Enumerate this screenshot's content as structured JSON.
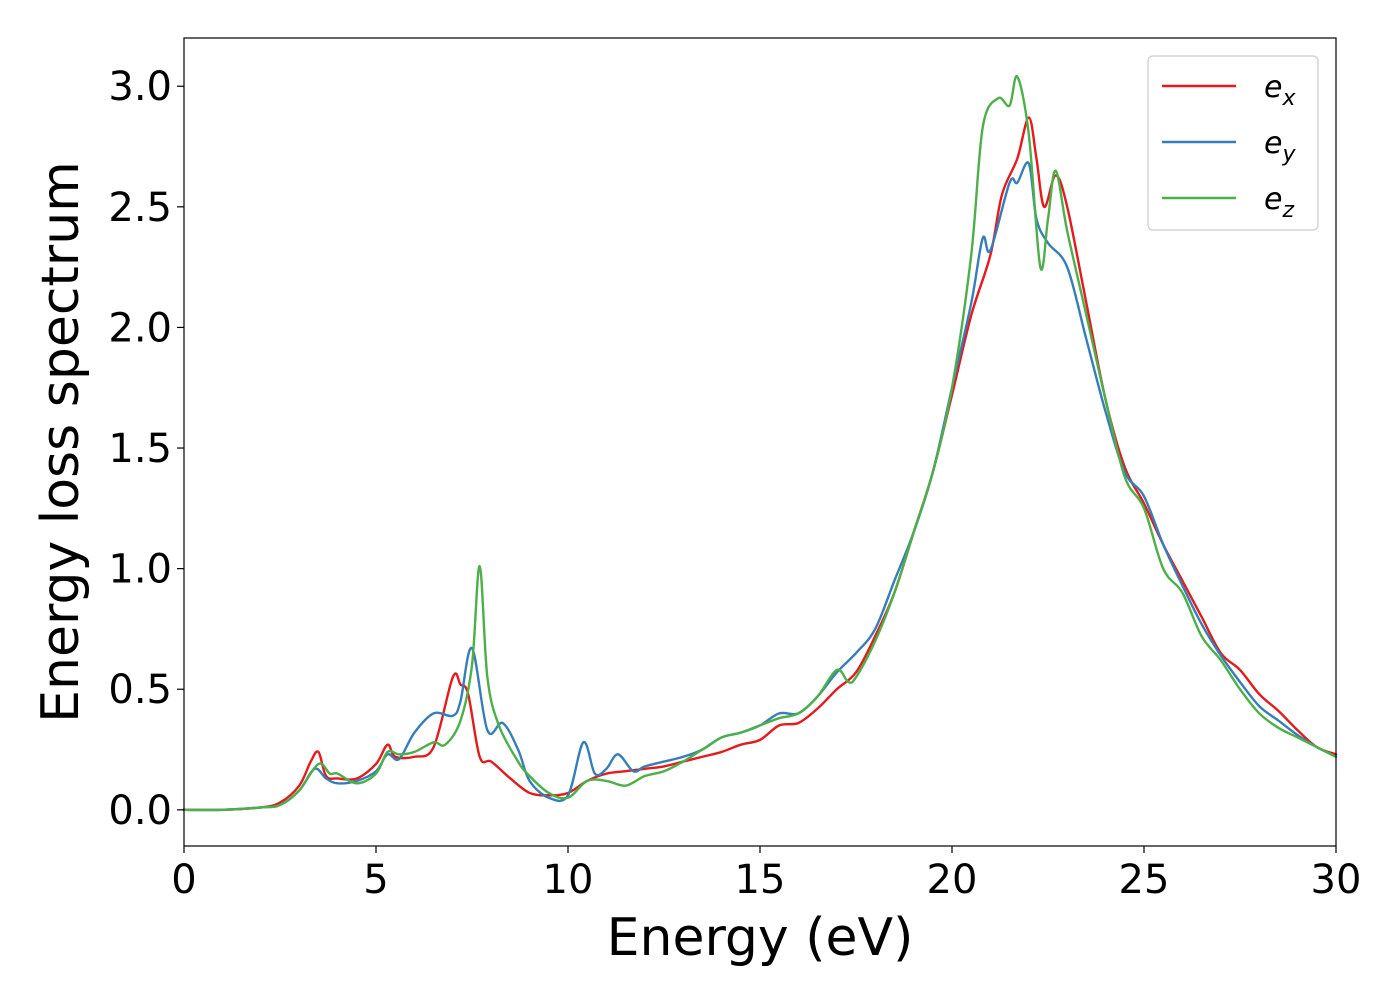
{
  "chart_data": {
    "type": "line",
    "title": "",
    "xlabel": "Energy (eV)",
    "ylabel": "Energy loss spectrum",
    "xlim": [
      0,
      30
    ],
    "ylim": [
      -0.15,
      3.2
    ],
    "xticks": [
      0,
      5,
      10,
      15,
      20,
      25,
      30
    ],
    "xtick_labels": [
      "0",
      "5",
      "10",
      "15",
      "20",
      "25",
      "30"
    ],
    "yticks": [
      0.0,
      0.5,
      1.0,
      1.5,
      2.0,
      2.5,
      3.0
    ],
    "ytick_labels": [
      "0.0",
      "0.5",
      "1.0",
      "1.5",
      "2.0",
      "2.5",
      "3.0"
    ],
    "grid": false,
    "legend_position": "upper-right",
    "series": [
      {
        "name": "e_x",
        "legend_base": "e",
        "legend_sub": "x",
        "color": "#e41a1c",
        "points": [
          [
            0,
            0
          ],
          [
            1,
            0
          ],
          [
            2,
            0.01
          ],
          [
            2.5,
            0.03
          ],
          [
            3,
            0.1
          ],
          [
            3.3,
            0.2
          ],
          [
            3.5,
            0.24
          ],
          [
            3.7,
            0.14
          ],
          [
            4,
            0.13
          ],
          [
            4.5,
            0.13
          ],
          [
            5,
            0.19
          ],
          [
            5.3,
            0.27
          ],
          [
            5.5,
            0.22
          ],
          [
            6,
            0.22
          ],
          [
            6.5,
            0.26
          ],
          [
            7,
            0.55
          ],
          [
            7.2,
            0.52
          ],
          [
            7.4,
            0.48
          ],
          [
            7.7,
            0.22
          ],
          [
            8,
            0.2
          ],
          [
            8.5,
            0.13
          ],
          [
            9,
            0.07
          ],
          [
            9.5,
            0.06
          ],
          [
            10,
            0.07
          ],
          [
            10.5,
            0.12
          ],
          [
            11,
            0.15
          ],
          [
            11.5,
            0.16
          ],
          [
            12,
            0.17
          ],
          [
            12.5,
            0.18
          ],
          [
            13,
            0.2
          ],
          [
            13.5,
            0.22
          ],
          [
            14,
            0.24
          ],
          [
            14.5,
            0.27
          ],
          [
            15,
            0.29
          ],
          [
            15.5,
            0.35
          ],
          [
            16,
            0.36
          ],
          [
            16.5,
            0.42
          ],
          [
            17,
            0.5
          ],
          [
            17.5,
            0.57
          ],
          [
            18,
            0.72
          ],
          [
            18.5,
            0.9
          ],
          [
            19,
            1.15
          ],
          [
            19.5,
            1.4
          ],
          [
            20,
            1.72
          ],
          [
            20.5,
            2.05
          ],
          [
            21,
            2.3
          ],
          [
            21.3,
            2.55
          ],
          [
            21.7,
            2.7
          ],
          [
            22,
            2.87
          ],
          [
            22.2,
            2.7
          ],
          [
            22.4,
            2.5
          ],
          [
            22.7,
            2.63
          ],
          [
            23,
            2.5
          ],
          [
            23.5,
            2.1
          ],
          [
            24,
            1.7
          ],
          [
            24.5,
            1.42
          ],
          [
            25,
            1.27
          ],
          [
            25.5,
            1.1
          ],
          [
            26,
            0.95
          ],
          [
            26.5,
            0.8
          ],
          [
            27,
            0.65
          ],
          [
            27.5,
            0.58
          ],
          [
            28,
            0.48
          ],
          [
            28.5,
            0.41
          ],
          [
            29,
            0.33
          ],
          [
            29.5,
            0.26
          ],
          [
            30,
            0.23
          ]
        ]
      },
      {
        "name": "e_y",
        "legend_base": "e",
        "legend_sub": "y",
        "color": "#377eb8",
        "points": [
          [
            0,
            0
          ],
          [
            1,
            0
          ],
          [
            2,
            0.01
          ],
          [
            2.5,
            0.02
          ],
          [
            3,
            0.08
          ],
          [
            3.4,
            0.17
          ],
          [
            3.7,
            0.13
          ],
          [
            4,
            0.11
          ],
          [
            4.5,
            0.12
          ],
          [
            5,
            0.16
          ],
          [
            5.3,
            0.23
          ],
          [
            5.6,
            0.21
          ],
          [
            6,
            0.32
          ],
          [
            6.5,
            0.4
          ],
          [
            7,
            0.39
          ],
          [
            7.2,
            0.45
          ],
          [
            7.5,
            0.67
          ],
          [
            7.9,
            0.33
          ],
          [
            8.3,
            0.36
          ],
          [
            8.7,
            0.25
          ],
          [
            9,
            0.12
          ],
          [
            9.5,
            0.05
          ],
          [
            10,
            0.06
          ],
          [
            10.4,
            0.28
          ],
          [
            10.7,
            0.15
          ],
          [
            11,
            0.17
          ],
          [
            11.3,
            0.23
          ],
          [
            11.7,
            0.16
          ],
          [
            12,
            0.18
          ],
          [
            12.5,
            0.2
          ],
          [
            13,
            0.22
          ],
          [
            13.5,
            0.25
          ],
          [
            14,
            0.3
          ],
          [
            14.5,
            0.32
          ],
          [
            15,
            0.35
          ],
          [
            15.5,
            0.4
          ],
          [
            16,
            0.4
          ],
          [
            16.5,
            0.47
          ],
          [
            17,
            0.57
          ],
          [
            17.5,
            0.65
          ],
          [
            18,
            0.75
          ],
          [
            18.5,
            0.95
          ],
          [
            19,
            1.15
          ],
          [
            19.5,
            1.4
          ],
          [
            20,
            1.75
          ],
          [
            20.5,
            2.1
          ],
          [
            20.8,
            2.37
          ],
          [
            21,
            2.32
          ],
          [
            21.5,
            2.6
          ],
          [
            21.7,
            2.6
          ],
          [
            22,
            2.68
          ],
          [
            22.2,
            2.45
          ],
          [
            22.5,
            2.35
          ],
          [
            23,
            2.25
          ],
          [
            23.5,
            1.95
          ],
          [
            24,
            1.65
          ],
          [
            24.5,
            1.4
          ],
          [
            25,
            1.3
          ],
          [
            25.5,
            1.1
          ],
          [
            26,
            0.93
          ],
          [
            26.5,
            0.77
          ],
          [
            27,
            0.64
          ],
          [
            27.5,
            0.53
          ],
          [
            28,
            0.43
          ],
          [
            28.5,
            0.37
          ],
          [
            29,
            0.31
          ],
          [
            29.5,
            0.26
          ],
          [
            30,
            0.22
          ]
        ]
      },
      {
        "name": "e_z",
        "legend_base": "e",
        "legend_sub": "z",
        "color": "#4daf4a",
        "points": [
          [
            0,
            0
          ],
          [
            1,
            0
          ],
          [
            2,
            0.01
          ],
          [
            2.5,
            0.02
          ],
          [
            3,
            0.08
          ],
          [
            3.5,
            0.19
          ],
          [
            3.8,
            0.15
          ],
          [
            4,
            0.15
          ],
          [
            4.5,
            0.11
          ],
          [
            5,
            0.15
          ],
          [
            5.3,
            0.24
          ],
          [
            5.6,
            0.23
          ],
          [
            6,
            0.24
          ],
          [
            6.5,
            0.28
          ],
          [
            6.8,
            0.27
          ],
          [
            7.2,
            0.37
          ],
          [
            7.5,
            0.6
          ],
          [
            7.7,
            1.01
          ],
          [
            7.9,
            0.55
          ],
          [
            8.2,
            0.35
          ],
          [
            8.7,
            0.2
          ],
          [
            9,
            0.14
          ],
          [
            9.5,
            0.07
          ],
          [
            10,
            0.05
          ],
          [
            10.5,
            0.12
          ],
          [
            11,
            0.12
          ],
          [
            11.5,
            0.1
          ],
          [
            12,
            0.14
          ],
          [
            12.5,
            0.16
          ],
          [
            13,
            0.2
          ],
          [
            13.5,
            0.25
          ],
          [
            14,
            0.3
          ],
          [
            14.5,
            0.32
          ],
          [
            15,
            0.35
          ],
          [
            15.5,
            0.38
          ],
          [
            16,
            0.4
          ],
          [
            16.5,
            0.47
          ],
          [
            17,
            0.58
          ],
          [
            17.3,
            0.53
          ],
          [
            17.5,
            0.55
          ],
          [
            18,
            0.7
          ],
          [
            18.5,
            0.9
          ],
          [
            19,
            1.15
          ],
          [
            19.5,
            1.4
          ],
          [
            20,
            1.75
          ],
          [
            20.5,
            2.3
          ],
          [
            20.8,
            2.83
          ],
          [
            21.2,
            2.95
          ],
          [
            21.5,
            2.92
          ],
          [
            21.7,
            3.04
          ],
          [
            22,
            2.8
          ],
          [
            22.3,
            2.25
          ],
          [
            22.5,
            2.45
          ],
          [
            22.7,
            2.65
          ],
          [
            23,
            2.4
          ],
          [
            23.5,
            2.05
          ],
          [
            24,
            1.7
          ],
          [
            24.5,
            1.38
          ],
          [
            25,
            1.25
          ],
          [
            25.5,
            1.0
          ],
          [
            26,
            0.9
          ],
          [
            26.5,
            0.72
          ],
          [
            27,
            0.62
          ],
          [
            27.5,
            0.5
          ],
          [
            28,
            0.4
          ],
          [
            28.5,
            0.34
          ],
          [
            29,
            0.3
          ],
          [
            29.5,
            0.26
          ],
          [
            30,
            0.22
          ]
        ]
      }
    ]
  }
}
